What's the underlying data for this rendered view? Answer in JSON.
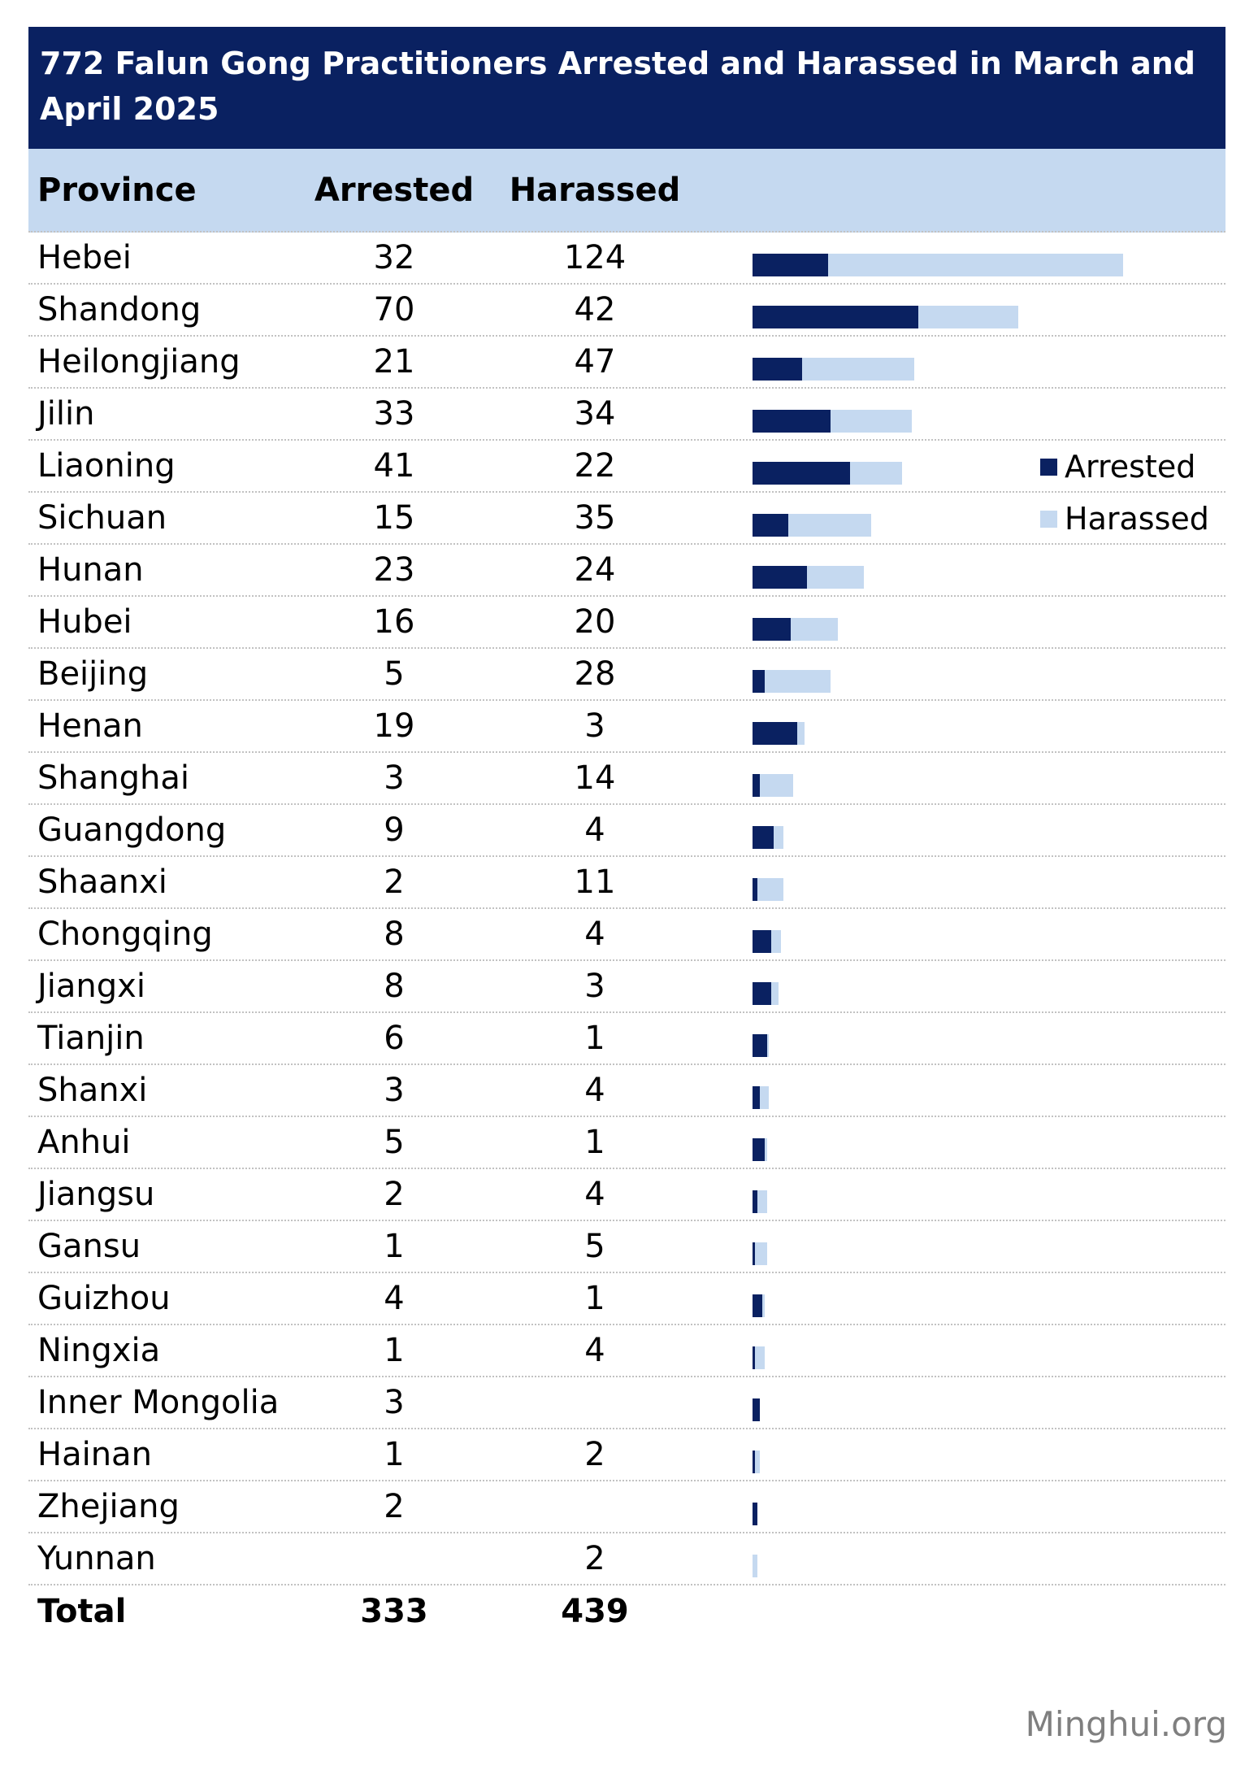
{
  "title": "772 Falun Gong Practitioners Arrested and Harassed in March and April 2025",
  "columns": {
    "province": "Province",
    "arrested": "Arrested",
    "harassed": "Harassed"
  },
  "legend": {
    "arrested_label": "Arrested",
    "harassed_label": "Harassed"
  },
  "total_row": {
    "label": "Total",
    "arrested": "333",
    "harassed": "439"
  },
  "footer": "Minghui.org",
  "colors": {
    "navy": "#0a2161",
    "light_blue": "#c5d9f0",
    "header_bg": "#c5d9f0",
    "separator": "#c2c2c2",
    "footer_text": "#7f7f7f",
    "title_text": "#ffffff"
  },
  "chart_data": {
    "type": "bar",
    "orientation": "horizontal",
    "stacked": true,
    "title": "772 Falun Gong Practitioners Arrested and Harassed in March and April 2025",
    "categories": [
      "Hebei",
      "Shandong",
      "Heilongjiang",
      "Jilin",
      "Liaoning",
      "Sichuan",
      "Hunan",
      "Hubei",
      "Beijing",
      "Henan",
      "Shanghai",
      "Guangdong",
      "Shaanxi",
      "Chongqing",
      "Jiangxi",
      "Tianjin",
      "Shanxi",
      "Anhui",
      "Jiangsu",
      "Gansu",
      "Guizhou",
      "Ningxia",
      "Inner Mongolia",
      "Hainan",
      "Zhejiang",
      "Yunnan"
    ],
    "series": [
      {
        "name": "Arrested",
        "color": "#0a2161",
        "values": [
          32,
          70,
          21,
          33,
          41,
          15,
          23,
          16,
          5,
          19,
          3,
          9,
          2,
          8,
          8,
          6,
          3,
          5,
          2,
          1,
          4,
          1,
          3,
          1,
          2,
          null
        ]
      },
      {
        "name": "Harassed",
        "color": "#c5d9f0",
        "values": [
          124,
          42,
          47,
          34,
          22,
          35,
          24,
          20,
          28,
          3,
          14,
          4,
          11,
          4,
          3,
          1,
          4,
          1,
          4,
          5,
          1,
          4,
          null,
          2,
          null,
          2
        ]
      }
    ],
    "totals": {
      "arrested": 333,
      "harassed": 439,
      "overall": 772
    },
    "legend_position": "right",
    "axes_hidden": true,
    "grid": false
  }
}
